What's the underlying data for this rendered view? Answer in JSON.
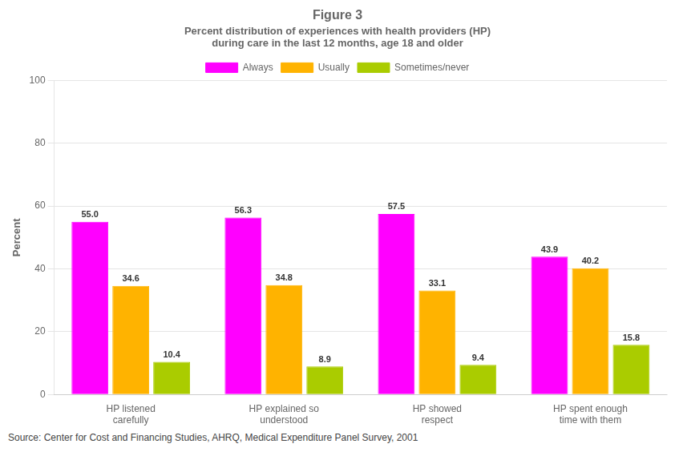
{
  "chart_data": {
    "type": "bar",
    "title": "Figure 3",
    "subtitle": [
      "Percent distribution of experiences with health providers (HP)",
      "during care in the last 12 months, age 18 and older"
    ],
    "y_label": "Percent",
    "categories": [
      "HP listened\ncarefully",
      "HP explained so\nunderstood",
      "HP showed\nrespect",
      "HP spent enough\ntime with them"
    ],
    "series": [
      {
        "name": "Always",
        "color": "#FF00FF",
        "values": [
          55.0,
          56.3,
          57.5,
          43.9
        ],
        "value_labels": [
          "55.0",
          "56.3",
          "57.5",
          "43.9"
        ]
      },
      {
        "name": "Usually",
        "color": "#FFB300",
        "values": [
          34.6,
          34.8,
          33.1,
          40.2
        ],
        "value_labels": [
          "34.6",
          "34.8",
          "33.1",
          "40.2"
        ]
      },
      {
        "name": "Sometimes/never",
        "color": "#AACC00",
        "values": [
          10.4,
          8.9,
          9.4,
          15.8
        ],
        "value_labels": [
          "10.4",
          "8.9",
          "9.4",
          "15.8"
        ]
      }
    ],
    "ylim": [
      0,
      100
    ],
    "yticks": [
      0,
      20,
      40,
      60,
      80,
      100
    ],
    "grid": "y",
    "legend": "top",
    "data_labels": true,
    "annotations": [
      "Source: Center for Cost and Financing Studies, AHRQ, Medical Expenditure Panel Survey, 2001"
    ]
  }
}
